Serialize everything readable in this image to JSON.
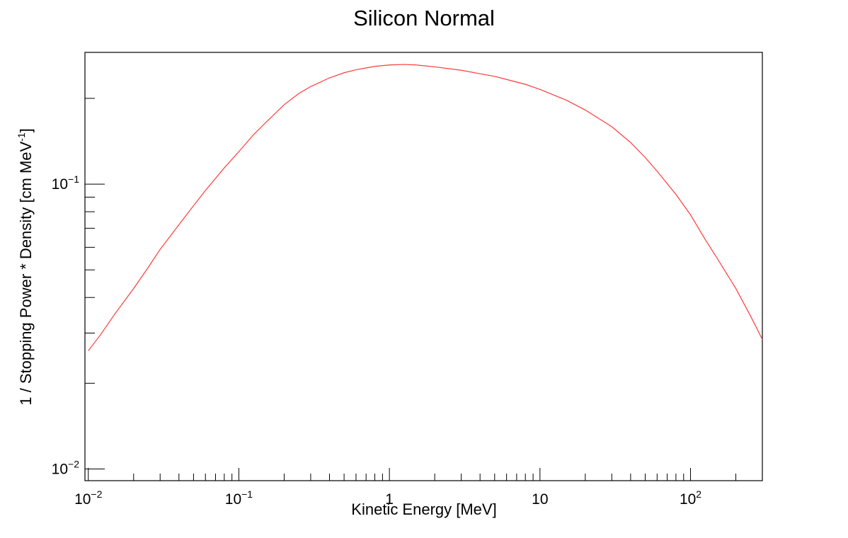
{
  "chart_data": {
    "type": "line",
    "title": "Silicon Normal",
    "xlabel": "Kinetic Energy [MeV]",
    "ylabel_main": "1 / Stopping Power * Density [cm MeV",
    "ylabel_sup": "-1",
    "ylabel_close": "]",
    "xscale": "log",
    "yscale": "log",
    "xlim": [
      0.0095,
      300
    ],
    "ylim": [
      0.0091,
      0.29
    ],
    "grid": false,
    "line_color": "#ff3b3b",
    "x_tick_labels": [
      {
        "value": 0.01,
        "base": "10",
        "exp": "−2"
      },
      {
        "value": 0.1,
        "base": "10",
        "exp": "−1"
      },
      {
        "value": 1,
        "base": "1",
        "exp": ""
      },
      {
        "value": 10,
        "base": "10",
        "exp": ""
      },
      {
        "value": 100,
        "base": "10",
        "exp": "2"
      }
    ],
    "y_tick_labels": [
      {
        "value": 0.1,
        "base": "10",
        "exp": "−1"
      },
      {
        "value": 0.01,
        "base": "10",
        "exp": "−2"
      }
    ],
    "series": [
      {
        "x": [
          0.01,
          0.012,
          0.015,
          0.02,
          0.025,
          0.03,
          0.04,
          0.05,
          0.06,
          0.08,
          0.1,
          0.125,
          0.15,
          0.2,
          0.25,
          0.3,
          0.4,
          0.5,
          0.6,
          0.8,
          1,
          1.25,
          1.5,
          2,
          3,
          4,
          5,
          6,
          8,
          10,
          15,
          20,
          30,
          40,
          50,
          60,
          80,
          100,
          125,
          150,
          200,
          250,
          300
        ],
        "y": [
          0.026,
          0.0295,
          0.035,
          0.043,
          0.051,
          0.059,
          0.072,
          0.084,
          0.095,
          0.114,
          0.13,
          0.149,
          0.164,
          0.19,
          0.208,
          0.22,
          0.236,
          0.246,
          0.252,
          0.259,
          0.262,
          0.263,
          0.262,
          0.258,
          0.251,
          0.244,
          0.239,
          0.233,
          0.224,
          0.215,
          0.197,
          0.182,
          0.159,
          0.14,
          0.124,
          0.111,
          0.092,
          0.078,
          0.064,
          0.055,
          0.043,
          0.0345,
          0.0285
        ]
      }
    ]
  }
}
